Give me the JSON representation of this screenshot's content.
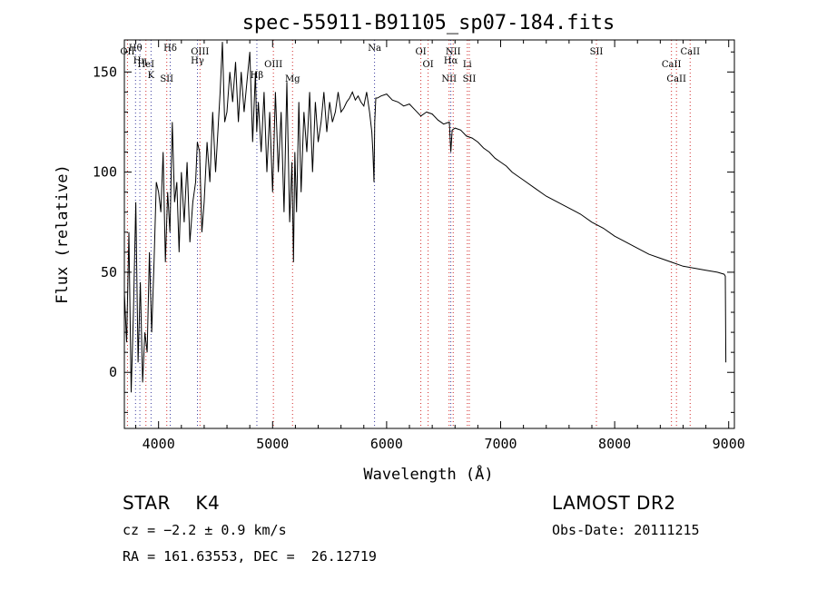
{
  "chart_data": {
    "type": "line",
    "title": "spec-55911-B91105_sp07-184.fits",
    "xlabel": "Wavelength (Å)",
    "ylabel": "Flux (relative)",
    "xlim": [
      3700,
      9050
    ],
    "ylim": [
      -28,
      166
    ],
    "xticks": [
      4000,
      5000,
      6000,
      7000,
      8000,
      9000
    ],
    "yticks": [
      0,
      50,
      100,
      150
    ],
    "grid": false,
    "series": [
      {
        "x": [
          3700,
          3720,
          3740,
          3760,
          3780,
          3800,
          3820,
          3840,
          3860,
          3880,
          3900,
          3920,
          3940,
          3960,
          3980,
          4000,
          4020,
          4040,
          4060,
          4080,
          4100,
          4120,
          4140,
          4160,
          4180,
          4200,
          4225,
          4250,
          4275,
          4300,
          4325,
          4340,
          4360,
          4380,
          4400,
          4425,
          4450,
          4475,
          4500,
          4520,
          4540,
          4560,
          4580,
          4600,
          4625,
          4650,
          4675,
          4700,
          4725,
          4750,
          4775,
          4800,
          4825,
          4850,
          4861,
          4875,
          4900,
          4925,
          4950,
          4975,
          5000,
          5025,
          5050,
          5075,
          5100,
          5125,
          5150,
          5170,
          5183,
          5195,
          5210,
          5230,
          5250,
          5275,
          5300,
          5325,
          5350,
          5375,
          5400,
          5425,
          5450,
          5475,
          5500,
          5525,
          5550,
          5575,
          5600,
          5625,
          5650,
          5675,
          5700,
          5725,
          5750,
          5775,
          5800,
          5825,
          5850,
          5870,
          5880,
          5889,
          5896,
          5905,
          5920,
          5950,
          6000,
          6050,
          6100,
          6150,
          6200,
          6250,
          6300,
          6350,
          6400,
          6450,
          6500,
          6550,
          6563,
          6575,
          6600,
          6650,
          6700,
          6750,
          6800,
          6850,
          6900,
          6950,
          7000,
          7050,
          7100,
          7150,
          7200,
          7300,
          7400,
          7500,
          7600,
          7700,
          7800,
          7900,
          8000,
          8100,
          8200,
          8300,
          8400,
          8500,
          8600,
          8700,
          8800,
          8900,
          8960,
          8970,
          8975
        ],
        "y": [
          40,
          15,
          70,
          -10,
          30,
          85,
          5,
          45,
          -5,
          20,
          10,
          60,
          20,
          55,
          95,
          90,
          80,
          110,
          55,
          90,
          70,
          125,
          85,
          95,
          60,
          100,
          75,
          105,
          65,
          85,
          95,
          115,
          110,
          70,
          85,
          115,
          95,
          130,
          100,
          120,
          140,
          165,
          125,
          130,
          150,
          135,
          155,
          125,
          150,
          130,
          145,
          160,
          115,
          150,
          120,
          135,
          110,
          140,
          100,
          130,
          90,
          140,
          100,
          130,
          80,
          145,
          75,
          105,
          55,
          110,
          80,
          135,
          90,
          130,
          110,
          140,
          100,
          135,
          115,
          125,
          140,
          120,
          135,
          125,
          130,
          140,
          130,
          132,
          135,
          137,
          140,
          136,
          138,
          135,
          133,
          140,
          130,
          120,
          110,
          95,
          125,
          137,
          137,
          138,
          139,
          136,
          135,
          133,
          134,
          131,
          128,
          130,
          129,
          126,
          124,
          125,
          110,
          121,
          122,
          121,
          118,
          117,
          115,
          112,
          110,
          107,
          105,
          103,
          100,
          98,
          96,
          92,
          88,
          85,
          82,
          79,
          75,
          72,
          68,
          65,
          62,
          59,
          57,
          55,
          53,
          52,
          51,
          50,
          49,
          48,
          5
        ]
      }
    ],
    "lines": {
      "blue": [
        {
          "name": "Hθ",
          "w": 3798
        },
        {
          "name": "Hη",
          "w": 3836
        },
        {
          "name": "K",
          "w": 3934
        },
        {
          "name": "Hδ",
          "w": 4102
        },
        {
          "name": "Hγ",
          "w": 4341
        },
        {
          "name": "Hβ",
          "w": 4862
        },
        {
          "name": "Na",
          "w": 5894
        },
        {
          "name": "Hα",
          "w": 6563
        }
      ],
      "red": [
        {
          "name": "OII",
          "w": 3727
        },
        {
          "name": "HeI",
          "w": 3889
        },
        {
          "name": "SII",
          "w": 4072
        },
        {
          "name": "OIII",
          "w": 4363
        },
        {
          "name": "OIII",
          "w": 5007
        },
        {
          "name": "Mg",
          "w": 5175
        },
        {
          "name": "OI",
          "w": 6300
        },
        {
          "name": "OI",
          "w": 6364
        },
        {
          "name": "NII",
          "w": 6548
        },
        {
          "name": "NII",
          "w": 6584
        },
        {
          "name": "Li",
          "w": 6708
        },
        {
          "name": "SII",
          "w": 6725
        },
        {
          "name": "SII",
          "w": 7840
        },
        {
          "name": "CaII",
          "w": 8498
        },
        {
          "name": "CaII",
          "w": 8542
        },
        {
          "name": "CaII",
          "w": 8662
        }
      ]
    }
  },
  "info": {
    "object": "STAR    K4",
    "cz": "cz = −2.2 ± 0.9 km/s",
    "radec": "RA = 161.63553, DEC =  26.12719",
    "survey": "LAMOST DR2",
    "obsdate": "Obs-Date: 20111215"
  },
  "colors": {
    "blue_lines": "#3a3a9e",
    "red_lines": "#d22a2a",
    "spectrum": "#000000",
    "axes": "#000000"
  }
}
